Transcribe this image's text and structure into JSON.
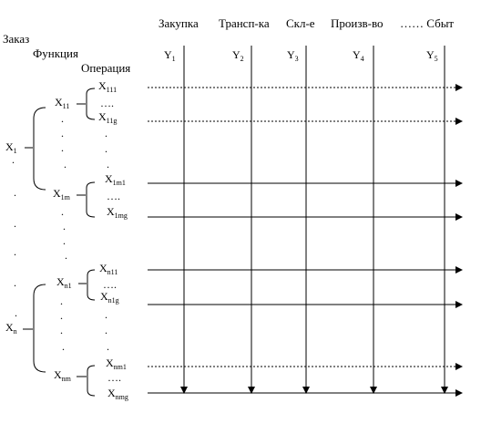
{
  "header": {
    "order_label": "Заказ",
    "function_label": "Функция",
    "operation_label": "Операция"
  },
  "departments": [
    {
      "name": "Закупка",
      "label": "Y",
      "index": "1"
    },
    {
      "name": "Трансп-ка",
      "label": "Y",
      "index": "2"
    },
    {
      "name": "Скл-е",
      "label": "Y",
      "index": "3"
    },
    {
      "name": "Произв-во",
      "label": "Y",
      "index": "4"
    },
    {
      "name": "…… Сбыт",
      "label": "Y",
      "index": "5"
    }
  ],
  "orders": [
    {
      "label": "X",
      "index": "1",
      "functions": [
        {
          "label": "X",
          "index": "11",
          "operations": [
            {
              "label": "X",
              "index": "111"
            },
            {
              "label": "X",
              "index": "11g"
            }
          ]
        },
        {
          "label": "X",
          "index": "1m",
          "operations": [
            {
              "label": "X",
              "index": "1m1"
            },
            {
              "label": "X",
              "index": "1mg"
            }
          ]
        }
      ]
    },
    {
      "label": "X",
      "index": "n",
      "functions": [
        {
          "label": "X",
          "index": "n1",
          "operations": [
            {
              "label": "X",
              "index": "n11"
            },
            {
              "label": "X",
              "index": "n1g"
            }
          ]
        },
        {
          "label": "X",
          "index": "nm",
          "operations": [
            {
              "label": "X",
              "index": "nm1"
            },
            {
              "label": "X",
              "index": "nmg"
            }
          ]
        }
      ]
    }
  ],
  "ellipsis": "….",
  "dot": "."
}
